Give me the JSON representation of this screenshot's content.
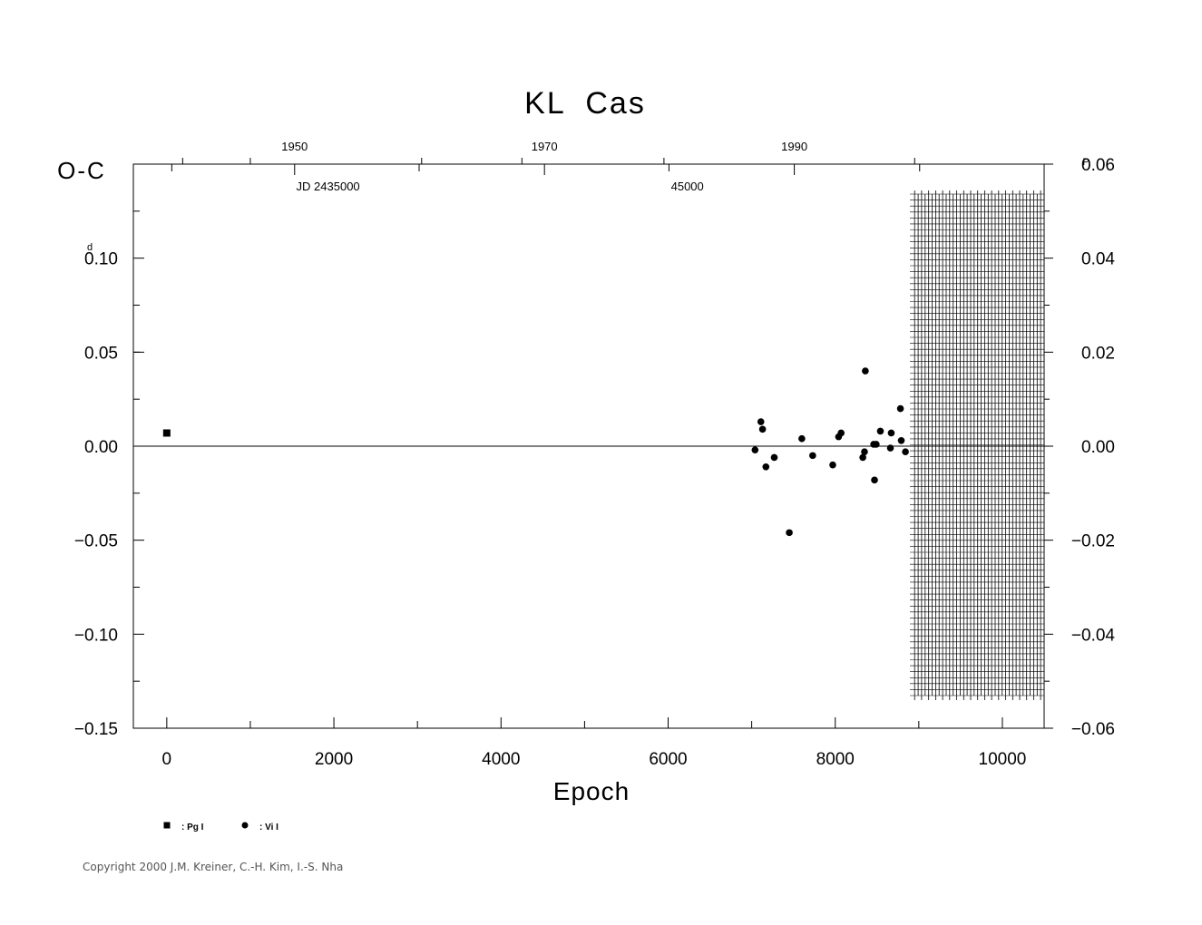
{
  "chart_data": {
    "type": "scatter",
    "title": "KL  Cas",
    "xlabel": "Epoch",
    "ylabel": "O-C",
    "left_unit": "d",
    "right_unit": "P",
    "xlim": [
      -400,
      10500
    ],
    "ylim": [
      -0.15,
      0.15
    ],
    "right_ylim": [
      -0.06,
      0.06
    ],
    "x_ticks": [
      "0",
      "2000",
      "4000",
      "6000",
      "8000",
      "10000"
    ],
    "x_tick_values": [
      0,
      2000,
      4000,
      6000,
      8000,
      10000
    ],
    "y_ticks": [
      "0.10",
      "0.05",
      "0.00",
      "−0.05",
      "−0.10",
      "−0.15"
    ],
    "y_tick_values": [
      0.1,
      0.05,
      0.0,
      -0.05,
      -0.1,
      -0.15
    ],
    "right_y_ticks": [
      "0.06",
      "0.04",
      "0.02",
      "0.00",
      "−0.02",
      "−0.04",
      "−0.06"
    ],
    "right_y_tick_values": [
      0.06,
      0.04,
      0.02,
      0.0,
      -0.02,
      -0.04,
      -0.06
    ],
    "top_year_ticks": [
      "1950",
      "1970",
      "1990"
    ],
    "top_year_tick_epochs": [
      1530,
      4520,
      7510
    ],
    "top_jd_labels": [
      "JD  2435000",
      "45000"
    ],
    "top_jd_label_epochs": [
      1930,
      6230
    ],
    "top_minor_tick_epochs": [
      190,
      1000,
      3050,
      4250,
      5950,
      8950
    ],
    "top_year_minor_epochs": [
      60,
      3020,
      6010,
      9010
    ],
    "forecast_region": [
      8950,
      10500
    ],
    "series": [
      {
        "name": "Pg I",
        "marker": "square",
        "points": [
          [
            0,
            0.007
          ]
        ]
      },
      {
        "name": "Vi I",
        "marker": "circle",
        "points": [
          [
            7040,
            -0.002
          ],
          [
            7110,
            0.013
          ],
          [
            7130,
            0.009
          ],
          [
            7170,
            -0.011
          ],
          [
            7270,
            -0.006
          ],
          [
            7450,
            -0.046
          ],
          [
            7600,
            0.004
          ],
          [
            7730,
            -0.005
          ],
          [
            7970,
            -0.01
          ],
          [
            8040,
            0.005
          ],
          [
            8070,
            0.007
          ],
          [
            8330,
            -0.006
          ],
          [
            8350,
            -0.003
          ],
          [
            8360,
            0.04
          ],
          [
            8460,
            0.001
          ],
          [
            8470,
            -0.018
          ],
          [
            8490,
            0.001
          ],
          [
            8540,
            0.008
          ],
          [
            8660,
            -0.001
          ],
          [
            8670,
            0.007
          ],
          [
            8780,
            0.02
          ],
          [
            8790,
            0.003
          ],
          [
            8840,
            -0.003
          ]
        ]
      }
    ],
    "legend": [
      {
        "marker": "square",
        "label": ": Pg I"
      },
      {
        "marker": "circle",
        "label": ": Vi I"
      }
    ]
  },
  "copyright": "Copyright 2000 J.M. Kreiner, C.-H. Kim, I.-S. Nha"
}
